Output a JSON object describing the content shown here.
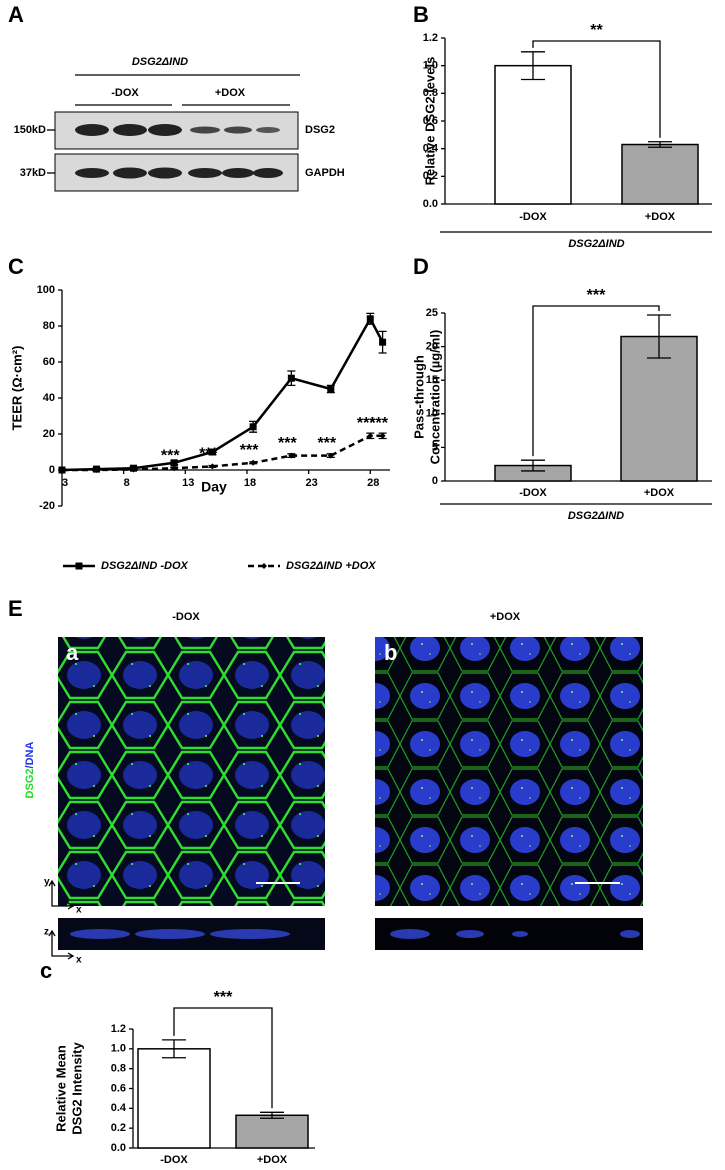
{
  "panel_labels": [
    "A",
    "B",
    "C",
    "D",
    "E",
    "c"
  ],
  "blot": {
    "header": "DSG2ΔIND",
    "conditions": [
      "-DOX",
      "+DOX"
    ],
    "rows": [
      {
        "marker": "150kD",
        "label": "DSG2"
      },
      {
        "marker": "37kD",
        "label": "GAPDH"
      }
    ]
  },
  "microscopy": {
    "conditions": [
      "-DOX",
      "+DOX"
    ],
    "panels": [
      "a",
      "b"
    ],
    "stain_label": [
      "DSG2",
      "/DNA"
    ],
    "stain_colors": [
      "#22dd22",
      "#2233ee"
    ],
    "axes_xy": [
      "y",
      "x"
    ],
    "axes_xz": [
      "z",
      "x"
    ]
  },
  "chart_data": [
    {
      "type": "bar",
      "ylabel": [
        "Relative DSG2 levels"
      ],
      "categories": [
        "-DOX",
        "+DOX"
      ],
      "values": [
        1.0,
        0.43
      ],
      "errors": [
        0.1,
        0.02
      ],
      "colors": [
        "#ffffff",
        "#a6a6a6"
      ],
      "ylim": [
        0,
        1.2
      ],
      "yticks": [
        {
          "value": 0,
          "label": "0.0"
        },
        {
          "value": 0.2,
          "label": "0.2"
        },
        {
          "value": 0.4,
          "label": "0.4"
        },
        {
          "value": 0.6,
          "label": "0.6"
        },
        {
          "value": 0.8,
          "label": "0.8"
        },
        {
          "value": 1,
          "label": "1.0"
        },
        {
          "value": 1.2,
          "label": "1.2"
        }
      ],
      "group_label": "DSG2ΔIND",
      "significance": "**"
    },
    {
      "type": "line",
      "ylabel": "TEER (Ω·cm²)",
      "xlabel": "Day",
      "x": [
        3,
        5.8,
        8.8,
        12.1,
        15.2,
        18.5,
        21.6,
        24.8,
        28,
        29
      ],
      "xlim": [
        3,
        29.6
      ],
      "xticks": [
        3,
        8,
        13,
        18,
        23,
        28
      ],
      "ylim": [
        -20,
        100
      ],
      "yticks": [
        -20,
        0,
        20,
        40,
        60,
        80,
        100
      ],
      "series": [
        {
          "name": "DSG2ΔIND -DOX",
          "color": "#000000",
          "line_style": "solid",
          "marker": "square",
          "values": [
            0,
            0.5,
            1,
            4,
            10,
            24,
            51,
            45,
            84,
            71
          ],
          "errors": [
            0,
            0.5,
            0.8,
            1,
            1.5,
            3,
            4,
            2,
            3,
            6
          ]
        },
        {
          "name": "DSG2ΔIND +DOX",
          "color": "#000000",
          "line_style": "dashed",
          "marker": "diamond",
          "values": [
            0,
            0,
            0.3,
            1,
            2,
            4,
            8,
            8,
            19,
            19
          ],
          "errors": [
            0,
            0,
            0,
            0.5,
            0.5,
            0.5,
            1,
            1,
            1.5,
            1.5
          ],
          "point_labels": [
            null,
            null,
            null,
            "***",
            "***",
            "***",
            "***",
            "***",
            "***",
            "***"
          ]
        }
      ]
    },
    {
      "type": "bar",
      "ylabel": [
        "Pass-through",
        "Concentration (µg/ml)"
      ],
      "categories": [
        "-DOX",
        "+DOX"
      ],
      "values": [
        2.3,
        21.5
      ],
      "errors": [
        0.8,
        3.2
      ],
      "colors": [
        "#a6a6a6",
        "#a6a6a6"
      ],
      "ylim": [
        0,
        25
      ],
      "yticks": [
        0,
        5,
        10,
        15,
        20,
        25
      ],
      "group_label": "DSG2ΔIND",
      "significance": "***"
    },
    {
      "type": "bar",
      "ylabel": [
        "Relative Mean",
        "DSG2 Intensity"
      ],
      "categories": [
        "-DOX",
        "+DOX"
      ],
      "values": [
        1.0,
        0.33
      ],
      "errors": [
        0.09,
        0.03
      ],
      "colors": [
        "#ffffff",
        "#a6a6a6"
      ],
      "ylim": [
        0,
        1.2
      ],
      "yticks": [
        {
          "value": 0,
          "label": "0.0"
        },
        {
          "value": 0.2,
          "label": "0.2"
        },
        {
          "value": 0.4,
          "label": "0.4"
        },
        {
          "value": 0.6,
          "label": "0.6"
        },
        {
          "value": 0.8,
          "label": "0.8"
        },
        {
          "value": 1,
          "label": "1.0"
        },
        {
          "value": 1.2,
          "label": "1.2"
        }
      ],
      "significance": "***"
    }
  ]
}
